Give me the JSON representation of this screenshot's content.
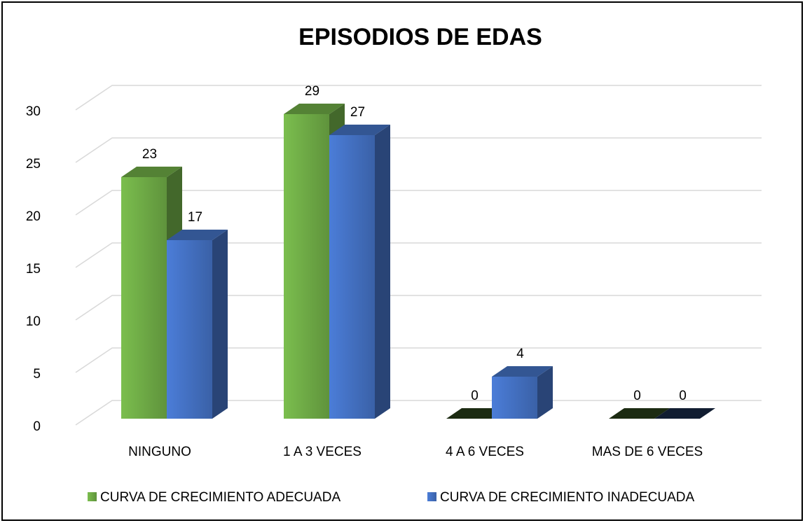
{
  "chart_data": {
    "type": "bar3d",
    "title": "EPISODIOS DE EDAS",
    "categories": [
      "NINGUNO",
      "1  A 3 VECES",
      "4  A 6 VECES",
      "MAS DE 6 VECES"
    ],
    "series": [
      {
        "name": "CURVA DE CRECIMIENTO ADECUADA",
        "color": "#70ad47",
        "values": [
          23,
          29,
          0,
          0
        ]
      },
      {
        "name": "CURVA DE CRECIMIENTO INADECUADA",
        "color": "#4472c4",
        "values": [
          17,
          27,
          4,
          0
        ]
      }
    ],
    "ylim": [
      0,
      30
    ],
    "yticks": [
      0,
      5,
      10,
      15,
      20,
      25,
      30
    ],
    "grid": true,
    "legend": "bottom"
  }
}
